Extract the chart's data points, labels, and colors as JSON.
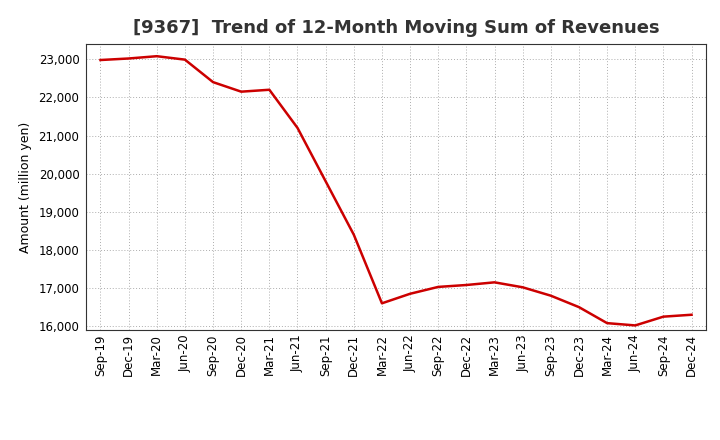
{
  "title": "[9367]  Trend of 12-Month Moving Sum of Revenues",
  "ylabel": "Amount (million yen)",
  "line_color": "#cc0000",
  "background_color": "#ffffff",
  "plot_bg_color": "#ffffff",
  "grid_color": "#999999",
  "x_labels": [
    "Sep-19",
    "Dec-19",
    "Mar-20",
    "Jun-20",
    "Sep-20",
    "Dec-20",
    "Mar-21",
    "Jun-21",
    "Sep-21",
    "Dec-21",
    "Mar-22",
    "Jun-22",
    "Sep-22",
    "Dec-22",
    "Mar-23",
    "Jun-23",
    "Sep-23",
    "Dec-23",
    "Mar-24",
    "Jun-24",
    "Sep-24",
    "Dec-24"
  ],
  "values": [
    22980,
    23020,
    23080,
    22990,
    22400,
    22150,
    22200,
    21200,
    19800,
    18400,
    16600,
    16850,
    17030,
    17080,
    17150,
    17020,
    16800,
    16500,
    16080,
    16020,
    16250,
    16300
  ],
  "ylim": [
    15900,
    23400
  ],
  "yticks": [
    16000,
    17000,
    18000,
    19000,
    20000,
    21000,
    22000,
    23000
  ],
  "linewidth": 1.8,
  "title_fontsize": 13,
  "axis_fontsize": 9,
  "tick_fontsize": 8.5
}
